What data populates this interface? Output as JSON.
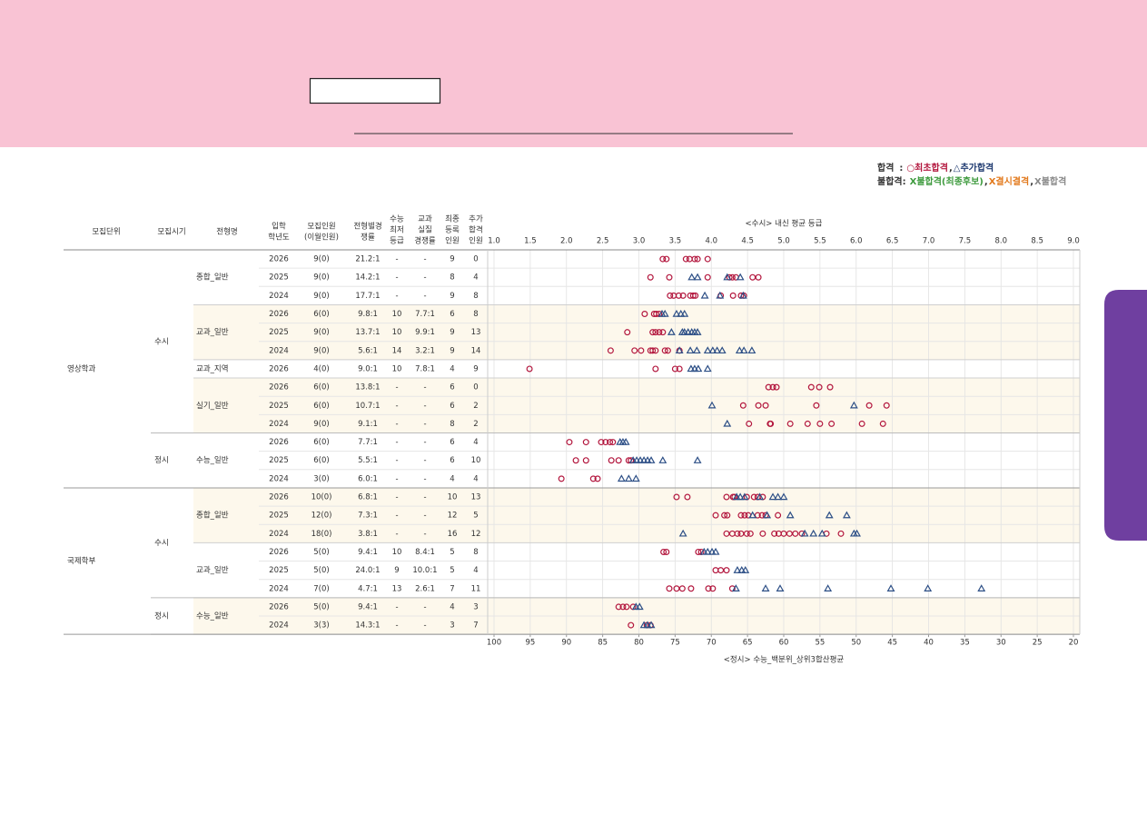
{
  "legend": {
    "rows": [
      {
        "label": "합격",
        "sep": ":",
        "items": [
          {
            "text": "○최초합격",
            "color": "#b3173e"
          },
          {
            "text": ",",
            "color": "#333333"
          },
          {
            "text": "△추가합격",
            "color": "#1f3a70"
          }
        ]
      },
      {
        "label": "불합격:",
        "items": [
          {
            "text": "X불합격(최종후보)",
            "color": "#3f9b3f"
          },
          {
            "text": ",",
            "color": "#333333"
          },
          {
            "text": "X결시결격",
            "color": "#e27a1e"
          },
          {
            "text": ",",
            "color": "#333333"
          },
          {
            "text": "X불합격",
            "color": "#8a8a8a"
          }
        ]
      }
    ]
  },
  "table": {
    "columns": [
      [
        "모집단위"
      ],
      [
        "모집시기"
      ],
      [
        "전형명"
      ],
      [
        "입학",
        "학년도"
      ],
      [
        "모집인원",
        "(이월인원)"
      ],
      [
        "전형별경",
        "쟁률"
      ],
      [
        "수능",
        "최저",
        "등급"
      ],
      [
        "교과",
        "실질",
        "경쟁률"
      ],
      [
        "최종",
        "등록",
        "인원"
      ],
      [
        "추가",
        "합격",
        "인원"
      ]
    ],
    "units": [
      {
        "name": "영상학과",
        "periods": [
          {
            "name": "수시",
            "types": [
              {
                "name": "종합_일반",
                "rows": [
                  {
                    "cells": [
                      "2026",
                      "9(0)",
                      "21.2:1",
                      "-",
                      "-",
                      "9",
                      "0"
                    ],
                    "first": [
                      3.33,
                      3.38,
                      3.65,
                      3.7,
                      3.77,
                      3.81,
                      3.95
                    ],
                    "added": []
                  },
                  {
                    "cells": [
                      "2025",
                      "9(0)",
                      "14.2:1",
                      "-",
                      "-",
                      "8",
                      "4"
                    ],
                    "first": [
                      3.16,
                      3.42,
                      3.95,
                      4.25,
                      4.29,
                      4.34,
                      4.57,
                      4.65
                    ],
                    "added": [
                      3.73,
                      3.81,
                      4.22,
                      4.4
                    ]
                  },
                  {
                    "cells": [
                      "2024",
                      "9(0)",
                      "17.7:1",
                      "-",
                      "-",
                      "9",
                      "8"
                    ],
                    "first": [
                      3.43,
                      3.48,
                      3.55,
                      3.61,
                      3.71,
                      3.75,
                      3.78,
                      4.13,
                      4.3,
                      4.41,
                      4.45
                    ],
                    "added": [
                      3.91,
                      4.12,
                      4.44
                    ]
                  }
                ]
              },
              {
                "name": "교과_일반",
                "rows": [
                  {
                    "cells": [
                      "2026",
                      "6(0)",
                      "9.8:1",
                      "10",
                      "7.7:1",
                      "6",
                      "8"
                    ],
                    "first": [
                      3.08,
                      3.21,
                      3.24,
                      3.28
                    ],
                    "added": [
                      3.32,
                      3.36,
                      3.52,
                      3.58,
                      3.63
                    ]
                  },
                  {
                    "cells": [
                      "2025",
                      "9(0)",
                      "13.7:1",
                      "10",
                      "9.9:1",
                      "9",
                      "13"
                    ],
                    "first": [
                      2.84,
                      3.19,
                      3.23,
                      3.28,
                      3.33
                    ],
                    "added": [
                      3.45,
                      3.6,
                      3.63,
                      3.68,
                      3.73,
                      3.77,
                      3.81
                    ]
                  },
                  {
                    "cells": [
                      "2024",
                      "9(0)",
                      "5.6:1",
                      "14",
                      "3.2:1",
                      "9",
                      "14"
                    ],
                    "first": [
                      2.61,
                      2.94,
                      3.03,
                      3.16,
                      3.19,
                      3.23,
                      3.36,
                      3.4,
                      3.56
                    ],
                    "added": [
                      3.56,
                      3.71,
                      3.8,
                      3.95,
                      4.02,
                      4.08,
                      4.15,
                      4.39,
                      4.45,
                      4.56
                    ]
                  }
                ]
              },
              {
                "name": "교과_지역",
                "rows": [
                  {
                    "cells": [
                      "2026",
                      "4(0)",
                      "9.0:1",
                      "10",
                      "7.8:1",
                      "4",
                      "9"
                    ],
                    "first": [
                      1.49,
                      3.23,
                      3.5,
                      3.56
                    ],
                    "added": [
                      3.72,
                      3.77,
                      3.82,
                      3.95
                    ]
                  }
                ]
              },
              {
                "name": "실기_일반",
                "rows": [
                  {
                    "cells": [
                      "2026",
                      "6(0)",
                      "13.8:1",
                      "-",
                      "-",
                      "6",
                      "0"
                    ],
                    "first": [
                      4.79,
                      4.85,
                      4.9,
                      5.38,
                      5.49,
                      5.64
                    ],
                    "added": []
                  },
                  {
                    "cells": [
                      "2025",
                      "6(0)",
                      "10.7:1",
                      "-",
                      "-",
                      "6",
                      "2"
                    ],
                    "first": [
                      4.44,
                      4.65,
                      4.75,
                      5.45,
                      6.18,
                      6.42
                    ],
                    "added": [
                      4.01,
                      5.97
                    ]
                  },
                  {
                    "cells": [
                      "2024",
                      "9(0)",
                      "9.1:1",
                      "-",
                      "-",
                      "8",
                      "2"
                    ],
                    "first": [
                      4.52,
                      4.81,
                      4.82,
                      5.09,
                      5.33,
                      5.5,
                      5.66,
                      6.08,
                      6.37
                    ],
                    "added": [
                      4.22
                    ]
                  }
                ]
              }
            ]
          },
          {
            "name": "정시",
            "scale": "x2",
            "types": [
              {
                "name": "수능_일반",
                "rows": [
                  {
                    "cells": [
                      "2026",
                      "6(0)",
                      "7.7:1",
                      "-",
                      "-",
                      "6",
                      "4"
                    ],
                    "first": [
                      89.6,
                      87.3,
                      85.2,
                      84.6,
                      84.0,
                      83.6
                    ],
                    "added": [
                      82.6,
                      82.2,
                      81.8
                    ]
                  },
                  {
                    "cells": [
                      "2025",
                      "6(0)",
                      "5.5:1",
                      "-",
                      "-",
                      "6",
                      "10"
                    ],
                    "first": [
                      88.7,
                      87.3,
                      83.8,
                      82.8,
                      81.4,
                      81.1
                    ],
                    "added": [
                      80.8,
                      80.3,
                      79.8,
                      79.3,
                      78.8,
                      78.3,
                      76.7,
                      71.9
                    ]
                  },
                  {
                    "cells": [
                      "2024",
                      "3(0)",
                      "6.0:1",
                      "-",
                      "-",
                      "4",
                      "4"
                    ],
                    "first": [
                      90.7,
                      86.3,
                      85.7
                    ],
                    "added": [
                      82.4,
                      81.4,
                      80.4
                    ]
                  }
                ]
              }
            ]
          }
        ]
      },
      {
        "name": "국제학부",
        "periods": [
          {
            "name": "수시",
            "types": [
              {
                "name": "종합_일반",
                "rows": [
                  {
                    "cells": [
                      "2026",
                      "10(0)",
                      "6.8:1",
                      "-",
                      "-",
                      "10",
                      "13"
                    ],
                    "first": [
                      3.52,
                      3.67,
                      4.21,
                      4.3,
                      4.32,
                      4.49,
                      4.59,
                      4.64,
                      4.71
                    ],
                    "added": [
                      4.35,
                      4.4,
                      4.46,
                      4.67,
                      4.85,
                      4.92,
                      5.0
                    ]
                  },
                  {
                    "cells": [
                      "2025",
                      "12(0)",
                      "7.3:1",
                      "-",
                      "-",
                      "12",
                      "5"
                    ],
                    "first": [
                      4.06,
                      4.18,
                      4.22,
                      4.41,
                      4.46,
                      4.51,
                      4.64,
                      4.7,
                      4.75,
                      4.92
                    ],
                    "added": [
                      4.57,
                      4.77,
                      5.09,
                      5.63,
                      5.87
                    ]
                  },
                  {
                    "cells": [
                      "2024",
                      "18(0)",
                      "3.8:1",
                      "-",
                      "-",
                      "16",
                      "12"
                    ],
                    "first": [
                      4.21,
                      4.29,
                      4.36,
                      4.41,
                      4.49,
                      4.54,
                      4.71,
                      4.87,
                      4.93,
                      5.0,
                      5.08,
                      5.16,
                      5.25,
                      5.59,
                      5.79
                    ],
                    "added": [
                      3.61,
                      5.29,
                      5.41,
                      5.53,
                      5.97,
                      6.01
                    ]
                  }
                ]
              },
              {
                "name": "교과_일반",
                "rows": [
                  {
                    "cells": [
                      "2026",
                      "5(0)",
                      "9.4:1",
                      "10",
                      "8.4:1",
                      "5",
                      "8"
                    ],
                    "first": [
                      3.34,
                      3.38,
                      3.82,
                      3.86
                    ],
                    "added": [
                      3.9,
                      3.95,
                      4.01,
                      4.06
                    ]
                  },
                  {
                    "cells": [
                      "2025",
                      "5(0)",
                      "24.0:1",
                      "9",
                      "10.0:1",
                      "5",
                      "4"
                    ],
                    "first": [
                      4.06,
                      4.13,
                      4.21
                    ],
                    "added": [
                      4.36,
                      4.42,
                      4.47
                    ]
                  },
                  {
                    "cells": [
                      "2024",
                      "7(0)",
                      "4.7:1",
                      "13",
                      "2.6:1",
                      "7",
                      "11"
                    ],
                    "first": [
                      3.42,
                      3.52,
                      3.6,
                      3.72,
                      3.96,
                      4.02,
                      4.29
                    ],
                    "added": [
                      4.34,
                      4.75,
                      4.95,
                      5.61,
                      6.48,
                      6.99,
                      7.73
                    ]
                  }
                ]
              }
            ]
          },
          {
            "name": "정시",
            "scale": "x2",
            "types": [
              {
                "name": "수능_일반",
                "rows": [
                  {
                    "cells": [
                      "2026",
                      "5(0)",
                      "9.4:1",
                      "-",
                      "-",
                      "4",
                      "3"
                    ],
                    "first": [
                      82.8,
                      82.2,
                      81.7,
                      80.8
                    ],
                    "added": [
                      80.4,
                      79.9
                    ]
                  },
                  {
                    "cells": [
                      "2024",
                      "3(3)",
                      "14.3:1",
                      "-",
                      "-",
                      "3",
                      "7"
                    ],
                    "first": [
                      81.1,
                      78.9,
                      78.4
                    ],
                    "added": [
                      79.3,
                      78.8,
                      78.3
                    ]
                  }
                ]
              }
            ]
          }
        ]
      }
    ]
  },
  "axis": {
    "title": "<수시> 내신 평균 등급",
    "xlim": [
      1,
      9
    ],
    "xticks": [
      {
        "value": 1,
        "label": "1.0"
      },
      1.5,
      {
        "value": 2,
        "label": "2.0"
      },
      2.5,
      {
        "value": 3,
        "label": "3.0"
      },
      3.5,
      {
        "value": 4,
        "label": "4.0"
      },
      4.5,
      {
        "value": 5,
        "label": "5.0"
      },
      5.5,
      {
        "value": 6,
        "label": "6.0"
      },
      6.5,
      {
        "value": 7,
        "label": "7.0"
      },
      7.5,
      {
        "value": 8,
        "label": "8.0"
      },
      8.5,
      {
        "value": 9,
        "label": "9.0"
      }
    ],
    "x2title": "<정시> 수능_백분위_상위3합산평균",
    "x2lim": [
      100,
      20
    ],
    "x2ticks": [
      100,
      95,
      90,
      85,
      80,
      75,
      70,
      65,
      60,
      55,
      50,
      45,
      40,
      35,
      30,
      25,
      20
    ],
    "first_color": "#b3173e",
    "added_color": "#2d4f86"
  }
}
